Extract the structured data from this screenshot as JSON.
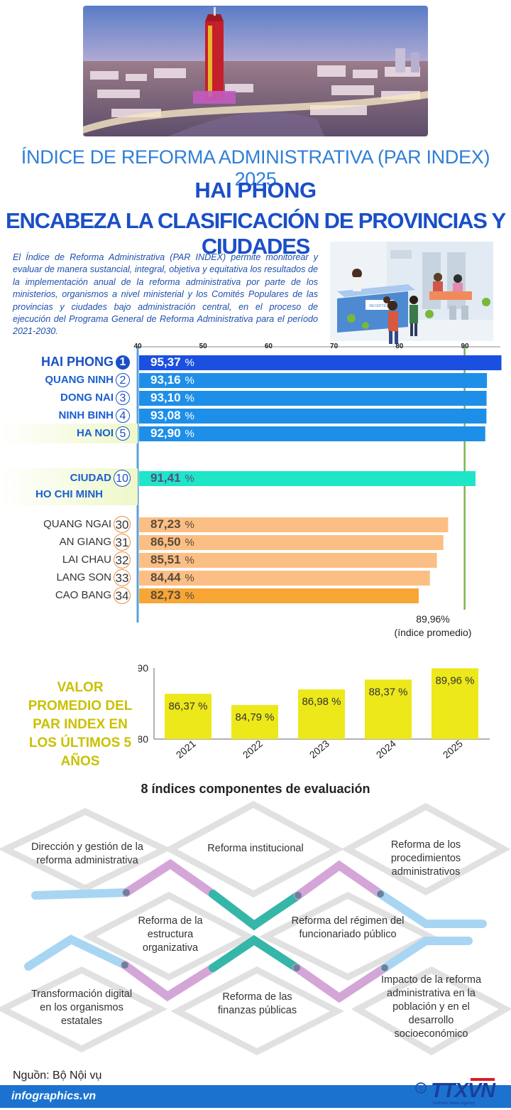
{
  "header": {
    "subtitle": "ÍNDICE DE REFORMA ADMINISTRATIVA (PAR INDEX) 2025",
    "title_line1": "HAI PHONG",
    "title_line2": "ENCABEZA LA CLASIFICACIÓN DE PROVINCIAS Y CIUDADES"
  },
  "intro": {
    "text": "El Índice de Reforma Administrativa (PAR INDEX) permite monitorear y evaluar de manera sustancial, integral, objetiva y equitativa los resultados de la implementación anual de la reforma administrativa por parte de los ministerios, organismos a nivel ministerial y los Comités Populares de las provincias y ciudades bajo administración central, en el proceso de ejecución del Programa General de Reforma Administrativa para el período 2021-2030.",
    "reception_sign": "RECEPTION"
  },
  "chart_data": [
    {
      "type": "bar",
      "orientation": "horizontal",
      "xlim": [
        40,
        100
      ],
      "ticks": [
        "40",
        "50",
        "60",
        "70",
        "80",
        "90"
      ],
      "reference_line": {
        "value": 89.96,
        "label_value": "89,96%",
        "label_text": "(índice promedio)"
      },
      "rows": [
        {
          "rank": "1",
          "name": "HAI PHONG",
          "value": 95.37,
          "value_label": "95,37",
          "unit": "%",
          "group": "top1"
        },
        {
          "rank": "2",
          "name": "QUANG NINH",
          "value": 93.16,
          "value_label": "93,16",
          "unit": "%",
          "group": "top"
        },
        {
          "rank": "3",
          "name": "DONG NAI",
          "value": 93.1,
          "value_label": "93,10",
          "unit": "%",
          "group": "top"
        },
        {
          "rank": "4",
          "name": "NINH BINH",
          "value": 93.08,
          "value_label": "93,08",
          "unit": "%",
          "group": "top"
        },
        {
          "rank": "5",
          "name": "HA NOI",
          "value": 92.9,
          "value_label": "92,90",
          "unit": "%",
          "group": "top"
        },
        {
          "rank": "10",
          "name": "CIUDAD",
          "name2": "HO CHI MINH",
          "value": 91.41,
          "value_label": "91,41",
          "unit": "%",
          "group": "mid"
        },
        {
          "rank": "30",
          "name": "QUANG NGAI",
          "value": 87.23,
          "value_label": "87,23",
          "unit": "%",
          "group": "bottom"
        },
        {
          "rank": "31",
          "name": "AN GIANG",
          "value": 86.5,
          "value_label": "86,50",
          "unit": "%",
          "group": "bottom"
        },
        {
          "rank": "32",
          "name": "LAI CHAU",
          "value": 85.51,
          "value_label": "85,51",
          "unit": "%",
          "group": "bottom"
        },
        {
          "rank": "33",
          "name": "LANG SON",
          "value": 84.44,
          "value_label": "84,44",
          "unit": "%",
          "group": "bottom"
        },
        {
          "rank": "34",
          "name": "CAO BANG",
          "value": 82.73,
          "value_label": "82,73",
          "unit": "%",
          "group": "last"
        }
      ],
      "colors": {
        "top1": "#1a4fe0",
        "top": "#1e8fe8",
        "mid": "#1ee6c6",
        "bottom": "#fbbf85",
        "last": "#f7a635"
      }
    },
    {
      "type": "bar",
      "title": "VALOR PROMEDIO DEL PAR INDEX EN LOS ÚLTIMOS 5 AÑOS",
      "categories": [
        "2021",
        "2022",
        "2023",
        "2024",
        "2025"
      ],
      "values": [
        86.37,
        84.79,
        86.98,
        88.37,
        89.96
      ],
      "value_labels": [
        "86,37 %",
        "84,79 %",
        "86,98 %",
        "88,37 %",
        "89,96 %"
      ],
      "ylim": [
        80,
        90
      ],
      "yticks": [
        "80",
        "90"
      ],
      "color": "#ece81a"
    }
  ],
  "lower_title": "VALOR PROMEDIO DEL PAR INDEX EN LOS ÚLTIMOS 5 AÑOS",
  "components": {
    "title": "8 índices componentes de evaluación",
    "items": [
      "Dirección y gestión de la reforma administrativa",
      "Reforma institucional",
      "Reforma de los procedimientos administrativos",
      "Reforma de la estructura organizativa",
      "Reforma del régimen del funcionariado público",
      "Transformación digital en los organismos estatales",
      "Reforma de las finanzas públicas",
      "Impacto de la reforma administrativa en la población y en el desarrollo socioeconómico"
    ]
  },
  "footer": {
    "source": "Nguồn: Bộ Nội vụ",
    "site": "infographics.vn",
    "copyright": "©",
    "logo": "TTXVN",
    "agency": "Vietnam News Agency"
  }
}
